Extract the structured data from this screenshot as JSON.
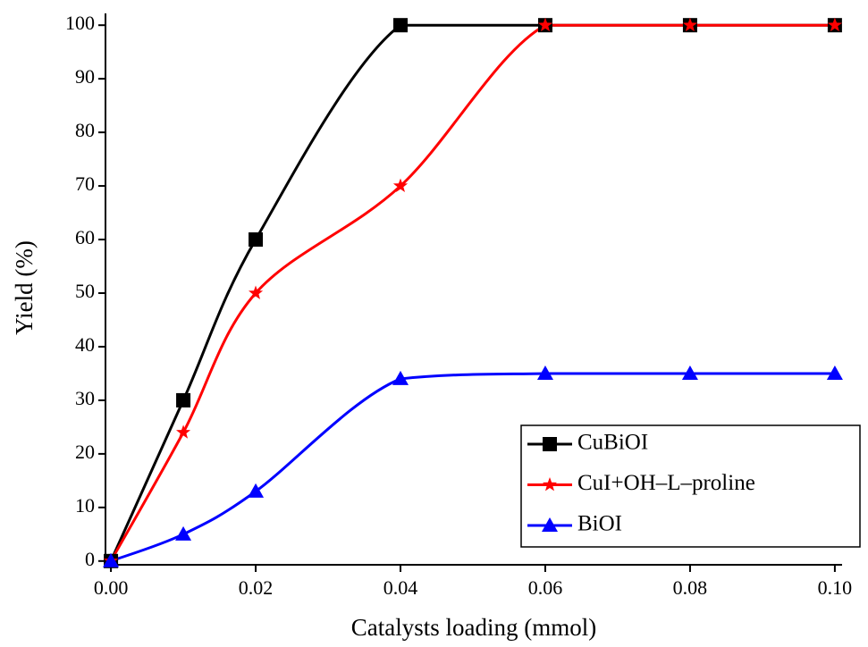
{
  "chart_data": {
    "type": "line",
    "x_label": "Catalysts loading (mmol)",
    "y_label": "Yield (%)",
    "x": [
      0,
      0.01,
      0.02,
      0.04,
      0.06,
      0.08,
      0.1
    ],
    "series": [
      {
        "name": "CuBiOI",
        "color": "#000000",
        "marker": "square",
        "values": [
          0,
          30,
          60,
          100,
          100,
          100,
          100
        ]
      },
      {
        "name": "CuI+OH–L–proline",
        "color": "#ff0000",
        "marker": "star",
        "values": [
          0,
          24,
          50,
          70,
          100,
          100,
          100
        ]
      },
      {
        "name": "BiOI",
        "color": "#0000ff",
        "marker": "triangle",
        "values": [
          0,
          5,
          13,
          34,
          35,
          35,
          35
        ]
      }
    ],
    "xlim": [
      -0.00075,
      0.101
    ],
    "ylim": [
      -0.7,
      102.2
    ],
    "xticks": [
      {
        "value": 0,
        "label": "0.00"
      },
      {
        "value": 0.02,
        "label": "0.02"
      },
      {
        "value": 0.04,
        "label": "0.04"
      },
      {
        "value": 0.06,
        "label": "0.06"
      },
      {
        "value": 0.08,
        "label": "0.08"
      },
      {
        "value": 0.1,
        "label": "0.10"
      }
    ],
    "yticks": [
      0,
      10,
      20,
      30,
      40,
      50,
      60,
      70,
      80,
      90,
      100
    ],
    "legend": "lower right"
  }
}
